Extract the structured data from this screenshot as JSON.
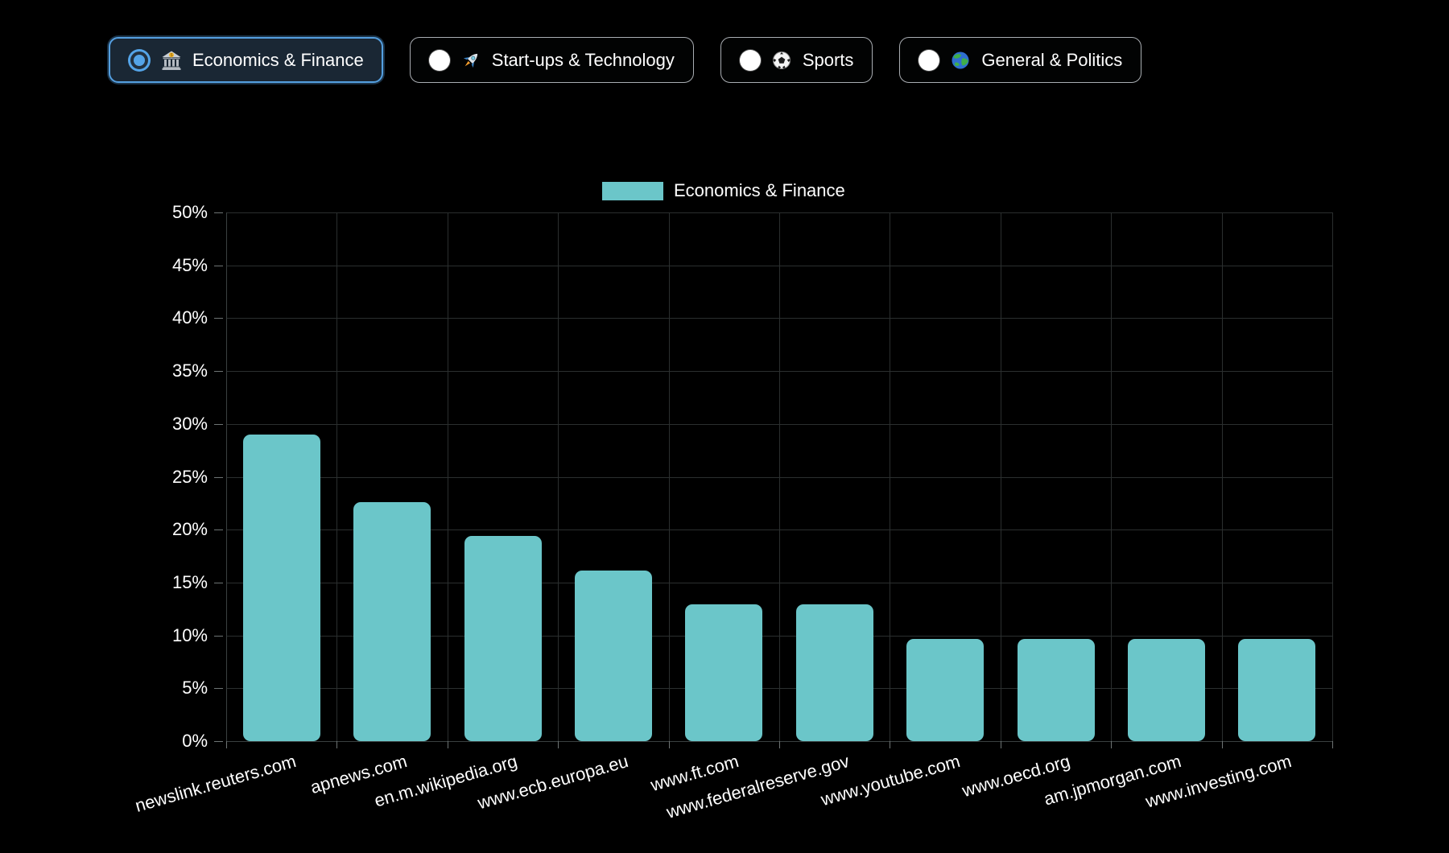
{
  "filters": {
    "options": [
      {
        "id": "economics-finance",
        "label": "Economics & Finance",
        "icon": "bank-icon",
        "emoji": "🏦",
        "selected": true
      },
      {
        "id": "startups-technology",
        "label": "Start-ups & Technology",
        "icon": "rocket-icon",
        "emoji": "🚀",
        "selected": false
      },
      {
        "id": "sports",
        "label": "Sports",
        "icon": "soccer-ball-icon",
        "emoji": "⚽",
        "selected": false
      },
      {
        "id": "general-politics",
        "label": "General & Politics",
        "icon": "globe-icon",
        "emoji": "🌍",
        "selected": false
      }
    ]
  },
  "chart_data": {
    "type": "bar",
    "title": "",
    "legend_label": "Economics & Finance",
    "legend_position": "top",
    "categories": [
      "newslink.reuters.com",
      "apnews.com",
      "en.m.wikipedia.org",
      "www.ecb.europa.eu",
      "www.ft.com",
      "www.federalreserve.gov",
      "www.youtube.com",
      "www.oecd.org",
      "am.jpmorgan.com",
      "www.investing.com"
    ],
    "values": [
      29.0,
      22.6,
      19.4,
      16.1,
      12.9,
      12.9,
      9.7,
      9.7,
      9.7,
      9.7
    ],
    "xlabel": "",
    "ylabel": "",
    "ylim": [
      0,
      50
    ],
    "ytick_step": 5,
    "ytick_suffix": "%",
    "grid": true,
    "colors": {
      "bar": "#6BC6C9",
      "background": "#000000",
      "grid": "#2b2f2f",
      "axis_text": "#ffffff",
      "selected_button_border": "#549fe0",
      "selected_button_bg": "#1a2734"
    }
  }
}
